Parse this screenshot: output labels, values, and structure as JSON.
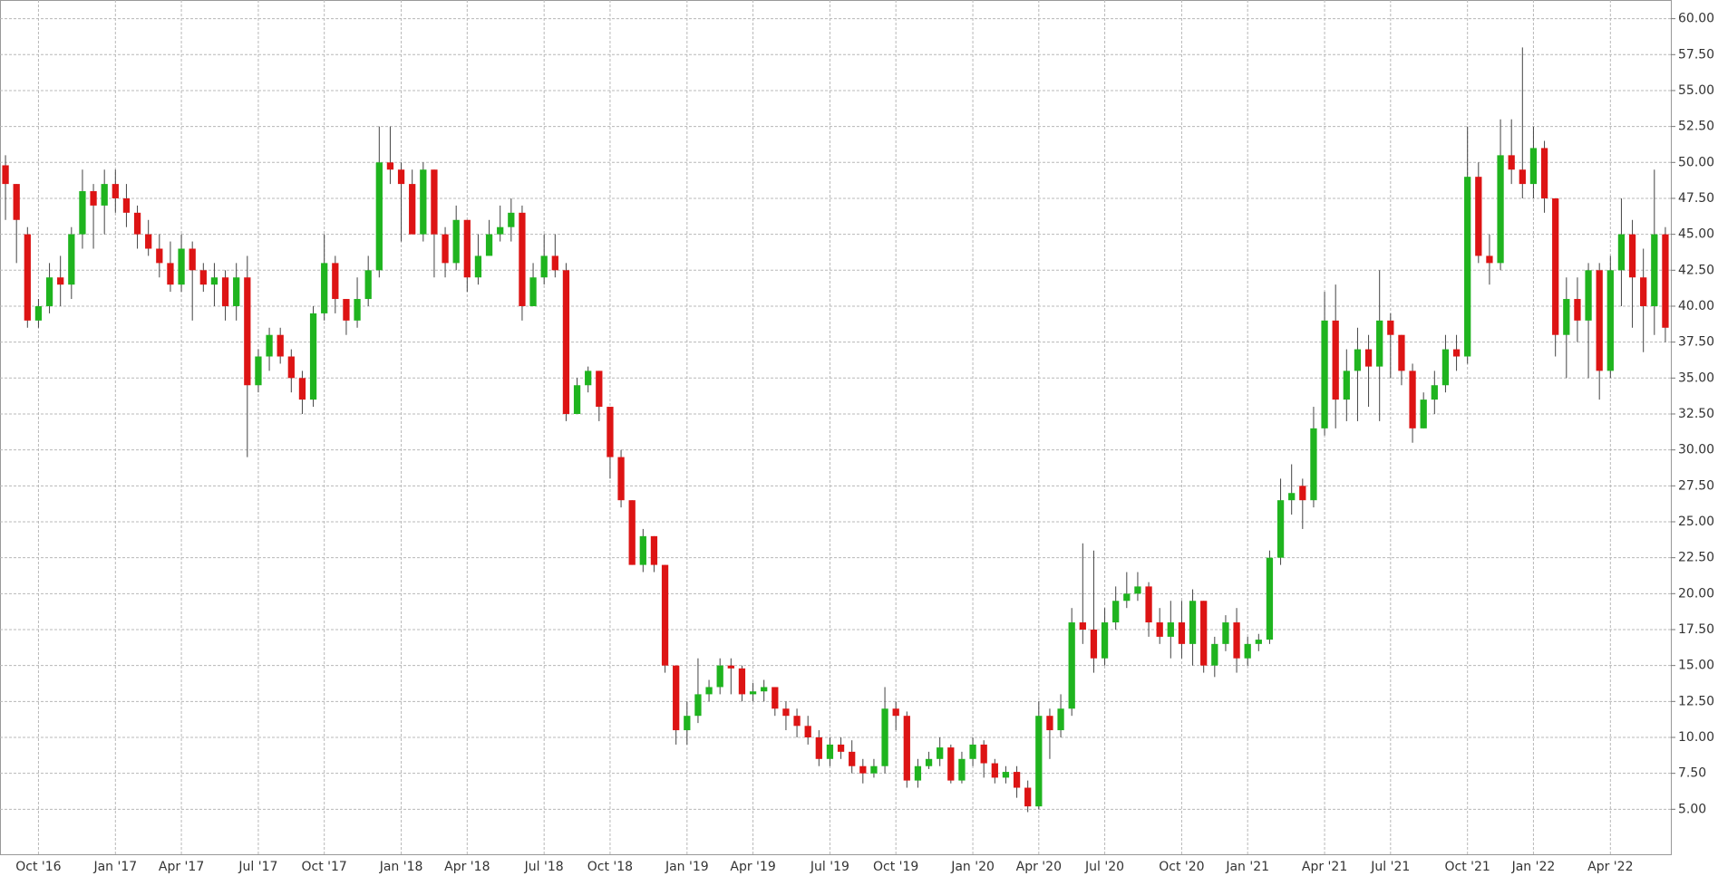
{
  "chart_data": {
    "type": "candlestick",
    "up_color": "#1fb41f",
    "down_color": "#dd1414",
    "grid": true,
    "ylim": [
      2.5,
      61.3
    ],
    "yticks": [
      {
        "value": 5,
        "label": "5.00"
      },
      {
        "value": 7.5,
        "label": "7.50"
      },
      {
        "value": 10,
        "label": "10.00"
      },
      {
        "value": 12.5,
        "label": "12.50"
      },
      {
        "value": 15,
        "label": "15.00"
      },
      {
        "value": 17.5,
        "label": "17.50"
      },
      {
        "value": 20,
        "label": "20.00"
      },
      {
        "value": 22.5,
        "label": "22.50"
      },
      {
        "value": 25,
        "label": "25.00"
      },
      {
        "value": 27.5,
        "label": "27.50"
      },
      {
        "value": 30,
        "label": "30.00"
      },
      {
        "value": 32.5,
        "label": "32.50"
      },
      {
        "value": 35,
        "label": "35.00"
      },
      {
        "value": 37.5,
        "label": "37.50"
      },
      {
        "value": 40,
        "label": "40.00"
      },
      {
        "value": 42.5,
        "label": "42.50"
      },
      {
        "value": 45,
        "label": "45.00"
      },
      {
        "value": 47.5,
        "label": "47.50"
      },
      {
        "value": 50,
        "label": "50.00"
      },
      {
        "value": 52.5,
        "label": "52.50"
      },
      {
        "value": 55,
        "label": "55.00"
      },
      {
        "value": 57.5,
        "label": "57.50"
      },
      {
        "value": 60,
        "label": "60.00"
      }
    ],
    "categories": [
      null,
      null,
      null,
      "Oct '16",
      null,
      null,
      null,
      null,
      null,
      null,
      "Jan '17",
      null,
      null,
      null,
      null,
      null,
      "Apr '17",
      null,
      null,
      null,
      null,
      null,
      null,
      "Jul '17",
      null,
      null,
      null,
      null,
      null,
      "Oct '17",
      null,
      null,
      null,
      null,
      null,
      null,
      "Jan '18",
      null,
      null,
      null,
      null,
      null,
      "Apr '18",
      null,
      null,
      null,
      null,
      null,
      null,
      "Jul '18",
      null,
      null,
      null,
      null,
      null,
      "Oct '18",
      null,
      null,
      null,
      null,
      null,
      null,
      "Jan '19",
      null,
      null,
      null,
      null,
      null,
      "Apr '19",
      null,
      null,
      null,
      null,
      null,
      null,
      "Jul '19",
      null,
      null,
      null,
      null,
      null,
      "Oct '19",
      null,
      null,
      null,
      null,
      null,
      null,
      "Jan '20",
      null,
      null,
      null,
      null,
      null,
      "Apr '20",
      null,
      null,
      null,
      null,
      null,
      "Jul '20",
      null,
      null,
      null,
      null,
      null,
      null,
      "Oct '20",
      null,
      null,
      null,
      null,
      null,
      "Jan '21",
      null,
      null,
      null,
      null,
      null,
      null,
      "Apr '21",
      null,
      null,
      null,
      null,
      null,
      "Jul '21",
      null,
      null,
      null,
      null,
      null,
      null,
      "Oct '21",
      null,
      null,
      null,
      null,
      null,
      "Jan '22",
      null,
      null,
      null,
      null,
      null,
      null,
      "Apr '22",
      null,
      null,
      null,
      null,
      null
    ],
    "open": [
      49.8,
      48.5,
      45,
      39,
      40,
      42,
      41.5,
      45,
      48,
      47,
      48.5,
      47.5,
      46.5,
      45,
      44,
      43,
      41.5,
      44,
      42.5,
      41.5,
      42,
      40,
      42,
      34.5,
      36.5,
      38,
      36.5,
      35,
      33.5,
      39.5,
      43,
      40.5,
      39,
      40.5,
      42.5,
      50,
      49.5,
      48.5,
      45,
      49.5,
      45,
      43,
      46,
      42,
      43.5,
      45,
      45.5,
      46.5,
      40,
      42,
      43.5,
      42.5,
      32.5,
      34.5,
      35.5,
      33,
      29.5,
      26.5,
      22,
      24,
      22,
      15,
      10.5,
      11.5,
      13,
      13.5,
      15,
      14.8,
      13,
      13.2,
      13.5,
      12,
      11.5,
      10.8,
      10,
      8.5,
      9.5,
      9,
      8,
      7.5,
      8,
      12,
      11.5,
      7,
      8,
      8.5,
      9.3,
      7,
      8.5,
      9.5,
      8.2,
      7.2,
      7.6,
      6.5,
      5.2,
      11.5,
      10.5,
      12,
      18,
      17.5,
      15.5,
      18,
      19.5,
      20,
      20.5,
      18,
      17,
      18,
      16.5,
      19.5,
      15,
      16.5,
      18,
      15.5,
      16.5,
      16.8,
      22.5,
      26.5,
      27.5,
      26.5,
      31.5,
      39,
      33.5,
      35.5,
      37,
      35.8,
      39,
      38,
      35.5,
      31.5,
      33.5,
      34.5,
      37,
      36.5,
      49,
      43.5,
      43,
      50.5,
      49.5,
      48.5,
      51,
      47.5,
      38,
      40.5,
      39,
      42.5,
      35.5,
      42.5,
      45,
      42,
      40,
      45
    ],
    "high": [
      50.5,
      48.5,
      45.5,
      40.5,
      43,
      43.5,
      45.5,
      49.5,
      48.5,
      49.5,
      49.5,
      48.5,
      47,
      46,
      45,
      44.5,
      45,
      44.5,
      43,
      43,
      42.5,
      43,
      43.5,
      37,
      38.5,
      38.5,
      37,
      35.5,
      40,
      45,
      43.5,
      40.5,
      42,
      43.5,
      52.5,
      52.5,
      50,
      49.5,
      50,
      49.5,
      45.5,
      47,
      46,
      45,
      46,
      47,
      47.5,
      47,
      43,
      45,
      45,
      43,
      35,
      35.8,
      35.5,
      33,
      30,
      26.5,
      24.5,
      24,
      22,
      15,
      12.5,
      15.5,
      14,
      15.5,
      15.5,
      15,
      13.8,
      14,
      13.5,
      12.5,
      12,
      11.5,
      10.5,
      10,
      10,
      9.8,
      8.5,
      8.5,
      13.5,
      12.5,
      11.8,
      8.5,
      9,
      10,
      9.5,
      9,
      10,
      9.8,
      8.5,
      8,
      8,
      7,
      12.5,
      12,
      13,
      19,
      23.5,
      23,
      19,
      20.5,
      21.5,
      21.5,
      20.8,
      19,
      19.5,
      19.5,
      20.3,
      19.5,
      17,
      18.5,
      19,
      17,
      17.2,
      23,
      28,
      29,
      28,
      33,
      41,
      41.5,
      37,
      38.5,
      38,
      42.5,
      39.5,
      38,
      36,
      34,
      35.5,
      38,
      38,
      52.5,
      50,
      45,
      53,
      53,
      58,
      52.5,
      51.5,
      47.5,
      42,
      42,
      43,
      43,
      43.5,
      47.5,
      46,
      44,
      49.5,
      45.5
    ],
    "low": [
      46,
      43,
      38.5,
      38.5,
      39.5,
      40,
      40.5,
      44,
      44,
      45,
      46.5,
      45.5,
      44,
      43.5,
      42,
      41,
      41,
      39,
      41,
      40,
      39,
      39,
      29.5,
      34,
      35.5,
      36,
      34,
      32.5,
      33,
      39,
      39.5,
      38,
      38.5,
      40,
      42,
      48.5,
      44.5,
      45,
      44.5,
      42,
      42,
      42.5,
      41,
      41.5,
      44,
      44.5,
      44.5,
      39,
      40,
      41.5,
      42,
      32,
      32.5,
      34,
      32,
      28,
      26,
      22,
      21.5,
      21.5,
      14.5,
      9.5,
      9.5,
      11,
      12.5,
      13,
      13,
      12.5,
      12.5,
      12.5,
      11.5,
      10.5,
      10,
      9.5,
      8,
      8,
      8.5,
      7.5,
      6.8,
      7.2,
      7.5,
      10.5,
      6.5,
      6.5,
      7.8,
      8,
      6.8,
      6.8,
      8,
      7.2,
      6.8,
      6.8,
      5.8,
      4.8,
      5,
      8.5,
      10,
      11.5,
      16.5,
      14.5,
      15,
      17.5,
      19,
      19.5,
      17,
      16.5,
      15.5,
      15.5,
      15,
      14.5,
      14.2,
      16,
      14.5,
      15,
      16,
      16.5,
      22,
      25.5,
      24.5,
      26,
      31,
      31.5,
      32,
      32,
      33,
      32,
      35,
      34.5,
      30.5,
      31.5,
      32.5,
      34,
      35.5,
      36,
      43,
      41.5,
      42.5,
      48.5,
      47.5,
      47.5,
      46.5,
      36.5,
      35,
      37.5,
      35,
      33.5,
      35,
      40,
      38.5,
      36.8,
      38,
      37.5
    ],
    "close": [
      48.5,
      46,
      39,
      40,
      42,
      41.5,
      45,
      48,
      47,
      48.5,
      47.5,
      46.5,
      45,
      44,
      43,
      41.5,
      44,
      42.5,
      41.5,
      42,
      40,
      42,
      34.5,
      36.5,
      38,
      36.5,
      35,
      33.5,
      39.5,
      43,
      40.5,
      39,
      40.5,
      42.5,
      50,
      49.5,
      48.5,
      45,
      49.5,
      45,
      43,
      46,
      42,
      43.5,
      45,
      45.5,
      46.5,
      40,
      42,
      43.5,
      42.5,
      32.5,
      34.5,
      35.5,
      33,
      29.5,
      26.5,
      22,
      24,
      22,
      15,
      10.5,
      11.5,
      13,
      13.5,
      15,
      14.8,
      13,
      13.2,
      13.5,
      12,
      11.5,
      10.8,
      10,
      8.5,
      9.5,
      9,
      8,
      7.5,
      8,
      12,
      11.5,
      7,
      8,
      8.5,
      9.3,
      7,
      8.5,
      9.5,
      8.2,
      7.2,
      7.6,
      6.5,
      5.2,
      11.5,
      10.5,
      12,
      18,
      17.5,
      15.5,
      18,
      19.5,
      20,
      20.5,
      18,
      17,
      18,
      16.5,
      19.5,
      15,
      16.5,
      18,
      15.5,
      16.5,
      16.8,
      22.5,
      26.5,
      27,
      26.5,
      31.5,
      39,
      33.5,
      35.5,
      37,
      35.8,
      39,
      38,
      35.5,
      31.5,
      33.5,
      34.5,
      37,
      36.5,
      49,
      43.5,
      43,
      50.5,
      49.5,
      48.5,
      51,
      47.5,
      38,
      40.5,
      39,
      42.5,
      35.5,
      42.5,
      45,
      42,
      40,
      45,
      38.5
    ]
  }
}
